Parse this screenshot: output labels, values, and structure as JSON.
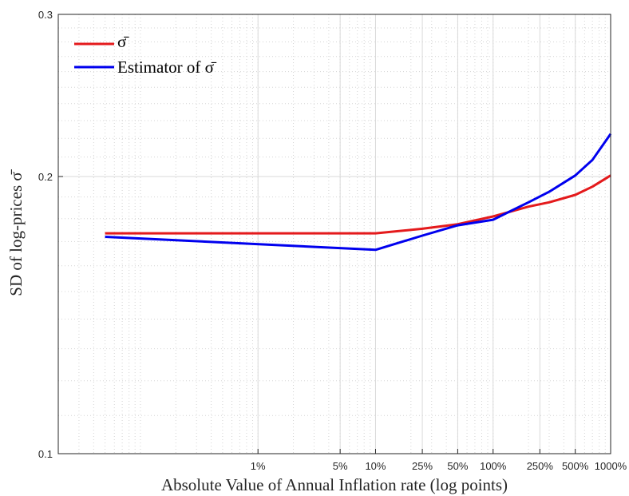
{
  "chart_data": {
    "type": "line",
    "xscale": "log",
    "yscale": "log",
    "xlabel": "Absolute Value of Annual Inflation rate (log points)",
    "ylabel": "SD of log-prices σ̄",
    "xlim": [
      0.0002,
      10
    ],
    "ylim": [
      0.1,
      0.3
    ],
    "grid": true,
    "legend_position": "top-left",
    "x_ticks": [
      {
        "value": 0.01,
        "label": "1%"
      },
      {
        "value": 0.05,
        "label": "5%"
      },
      {
        "value": 0.1,
        "label": "10%"
      },
      {
        "value": 0.25,
        "label": "25%"
      },
      {
        "value": 0.5,
        "label": "50%"
      },
      {
        "value": 1,
        "label": "100%"
      },
      {
        "value": 2.5,
        "label": "250%"
      },
      {
        "value": 5,
        "label": "500%"
      },
      {
        "value": 10,
        "label": "1000%"
      }
    ],
    "y_ticks": [
      {
        "value": 0.1,
        "label": "0.1"
      },
      {
        "value": 0.2,
        "label": "0.2"
      },
      {
        "value": 0.3,
        "label": "0.3"
      }
    ],
    "series": [
      {
        "name": "σ̄",
        "color": "#e41a1c",
        "x": [
          0.0005,
          0.1,
          0.25,
          0.5,
          1,
          2,
          3,
          5,
          7,
          10
        ],
        "y": [
          0.1735,
          0.1735,
          0.1755,
          0.1775,
          0.181,
          0.1855,
          0.1875,
          0.191,
          0.195,
          0.2005
        ]
      },
      {
        "name": "Estimator of σ̄",
        "color": "#0000ee",
        "x": [
          0.0005,
          0.1,
          0.25,
          0.5,
          1,
          2,
          3,
          5,
          7,
          10
        ],
        "y": [
          0.172,
          0.1665,
          0.1725,
          0.177,
          0.1795,
          0.1875,
          0.1925,
          0.2005,
          0.2085,
          0.2225
        ]
      }
    ]
  }
}
